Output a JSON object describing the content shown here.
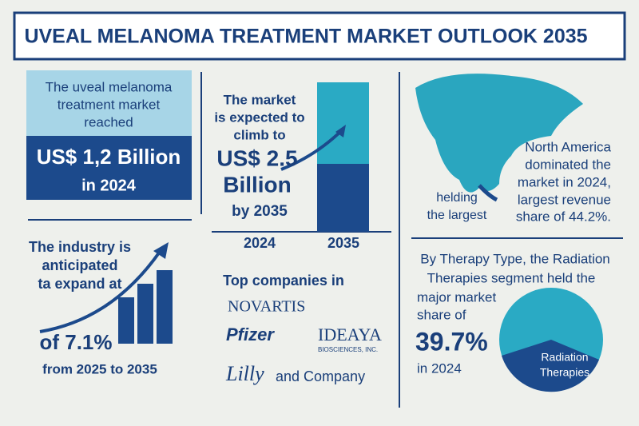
{
  "header": {
    "title": "UVEAL MELANOMA TREATMENT MARKET OUTLOOK 2035"
  },
  "market_2024": {
    "intro": [
      "The uveal melanoma",
      "treatment market",
      "reached"
    ],
    "value": "US$ 1,2 Billion",
    "year": "in 2024"
  },
  "market_2035": {
    "intro": [
      "The market",
      "is expected to",
      "climb to"
    ],
    "value": [
      "US$ 2.5",
      "Billion"
    ],
    "year": "by 2035",
    "bar_labels": [
      "2024",
      "2035"
    ]
  },
  "region": {
    "text": [
      "North America",
      "dominated the",
      "market in 2024,",
      "largest revenue",
      "share of 44.2%."
    ],
    "note": [
      "helding",
      "the largest"
    ]
  },
  "growth": {
    "intro": [
      "The industry is",
      "anticipated",
      "ta expand at"
    ],
    "rate": "of 7.1%",
    "period": "from 2025 to 2035"
  },
  "companies": {
    "heading": "Top companies in",
    "names": [
      "NOVARTIS",
      "Pfizer",
      "IDEAYA",
      "BIOSCIENCES, INC.",
      "Lilly",
      "and Company"
    ]
  },
  "therapy": {
    "intro": [
      "By Therapy Type, the Radiation",
      "Therapies segment held the",
      "major market",
      "share of"
    ],
    "value": "39.7%",
    "year": "in 2024",
    "pie_label": [
      "Radiation",
      "Therapies"
    ]
  }
}
